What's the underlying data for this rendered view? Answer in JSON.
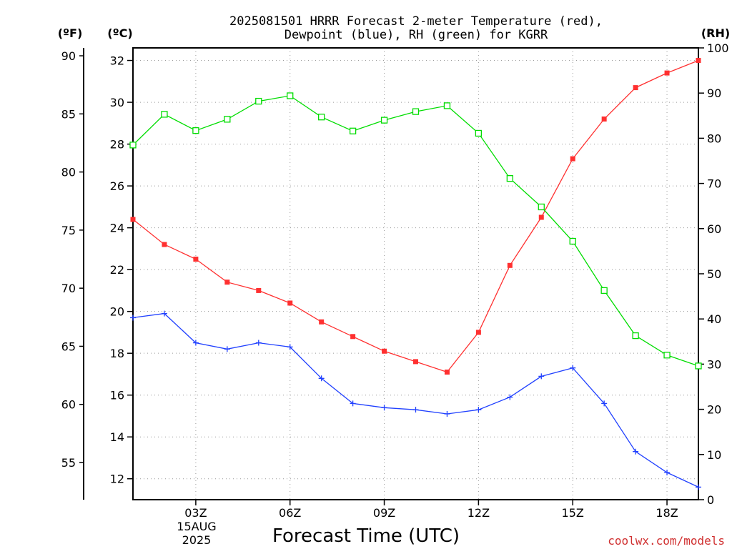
{
  "chart_data": {
    "type": "line",
    "title_lines": [
      "2025081501 HRRR Forecast 2-meter Temperature (red),",
      "Dewpoint (blue), RH (green) for KGRR"
    ],
    "units": {
      "fahrenheit": "(ºF)",
      "celsius": "(ºC)",
      "rh": "(RH)"
    },
    "xlabel": "Forecast Time (UTC)",
    "credit": "coolwx.com/models",
    "x_hours": [
      1,
      2,
      3,
      4,
      5,
      6,
      7,
      8,
      9,
      10,
      11,
      12,
      13,
      14,
      15,
      16,
      17,
      18,
      19
    ],
    "xlim": [
      1,
      19
    ],
    "x_ticks": [
      {
        "hour": 3,
        "label": "03Z"
      },
      {
        "hour": 6,
        "label": "06Z"
      },
      {
        "hour": 9,
        "label": "09Z"
      },
      {
        "hour": 12,
        "label": "12Z"
      },
      {
        "hour": 15,
        "label": "15Z"
      },
      {
        "hour": 18,
        "label": "18Z"
      }
    ],
    "date_label": [
      "15AUG",
      "2025"
    ],
    "y_celsius": {
      "range": [
        11.0,
        32.6
      ],
      "ticks": [
        12,
        14,
        16,
        18,
        20,
        22,
        24,
        26,
        28,
        30,
        32
      ]
    },
    "y_fahrenheit": {
      "ticks": [
        55,
        60,
        65,
        70,
        75,
        80,
        85,
        90
      ]
    },
    "y_rh": {
      "range": [
        0,
        100
      ],
      "ticks": [
        0,
        10,
        20,
        30,
        40,
        50,
        60,
        70,
        80,
        90,
        100
      ]
    },
    "grid": true,
    "series": [
      {
        "name": "Temperature",
        "axis": "celsius",
        "color": "#ff3030",
        "marker": "filled-square",
        "values": [
          24.4,
          23.2,
          22.5,
          21.4,
          21.0,
          20.4,
          19.5,
          18.8,
          18.1,
          17.6,
          17.1,
          19.0,
          22.2,
          24.5,
          27.3,
          29.2,
          30.7,
          31.4,
          32.0
        ]
      },
      {
        "name": "Dewpoint",
        "axis": "celsius",
        "color": "#2040ff",
        "marker": "plus",
        "values": [
          19.7,
          19.9,
          18.5,
          18.2,
          18.5,
          18.3,
          16.8,
          15.6,
          15.4,
          15.3,
          15.1,
          15.3,
          15.9,
          16.9,
          17.3,
          15.6,
          13.3,
          12.3,
          11.6
        ]
      },
      {
        "name": "RH",
        "axis": "rh",
        "color": "#00dd00",
        "marker": "open-square",
        "values": [
          78.5,
          85.3,
          81.7,
          84.2,
          88.2,
          89.4,
          84.7,
          81.6,
          84.0,
          85.9,
          87.2,
          81.1,
          71.1,
          64.8,
          57.2,
          46.3,
          36.3,
          32.0,
          29.6
        ]
      }
    ]
  }
}
